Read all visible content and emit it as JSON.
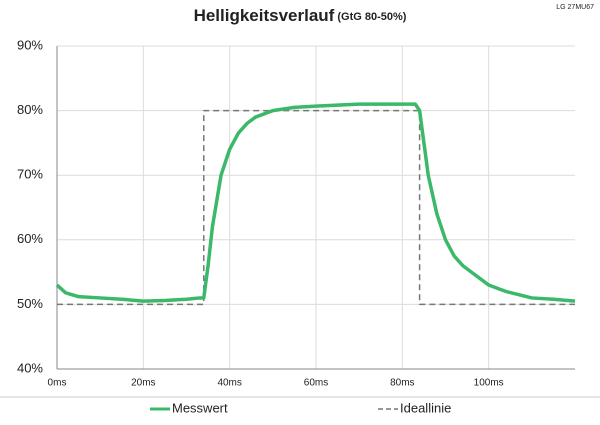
{
  "chart_data": {
    "type": "line",
    "title": "Helligkeitsverlauf",
    "subtitle": "(GtG 80-50%)",
    "watermark": "LG 27MU67",
    "xlim": [
      0,
      120
    ],
    "ylim": [
      40,
      90
    ],
    "xticks": [
      {
        "value": 0,
        "label": "0ms"
      },
      {
        "value": 20,
        "label": "20ms"
      },
      {
        "value": 40,
        "label": "40ms"
      },
      {
        "value": 60,
        "label": "60ms"
      },
      {
        "value": 80,
        "label": "80ms"
      },
      {
        "value": 100,
        "label": "100ms"
      }
    ],
    "yticks": [
      {
        "value": 40,
        "label": "40%"
      },
      {
        "value": 50,
        "label": "50%"
      },
      {
        "value": 60,
        "label": "60%"
      },
      {
        "value": 70,
        "label": "70%"
      },
      {
        "value": 80,
        "label": "80%"
      },
      {
        "value": 90,
        "label": "90%"
      }
    ],
    "grid": true,
    "series": [
      {
        "name": "Messwert",
        "color": "#3cb86a",
        "dashed": false,
        "x": [
          0,
          2,
          5,
          10,
          15,
          20,
          25,
          30,
          33,
          34,
          35,
          36,
          38,
          40,
          42,
          44,
          46,
          50,
          55,
          60,
          70,
          80,
          83,
          84,
          85,
          86,
          88,
          90,
          92,
          94,
          96,
          98,
          100,
          104,
          110,
          115,
          120
        ],
        "values": [
          53,
          51.8,
          51.2,
          51,
          50.8,
          50.5,
          50.6,
          50.8,
          51,
          51,
          56,
          62,
          70,
          74,
          76.5,
          78,
          79,
          80,
          80.5,
          80.7,
          81,
          81,
          81,
          80,
          75,
          70,
          64,
          60,
          57.5,
          56,
          55,
          54,
          53,
          52,
          51,
          50.8,
          50.5
        ]
      },
      {
        "name": "Ideallinie",
        "color": "#777777",
        "dashed": true,
        "x": [
          0,
          34,
          34,
          84,
          84,
          120
        ],
        "values": [
          50,
          50,
          80,
          80,
          50,
          50
        ]
      }
    ]
  }
}
